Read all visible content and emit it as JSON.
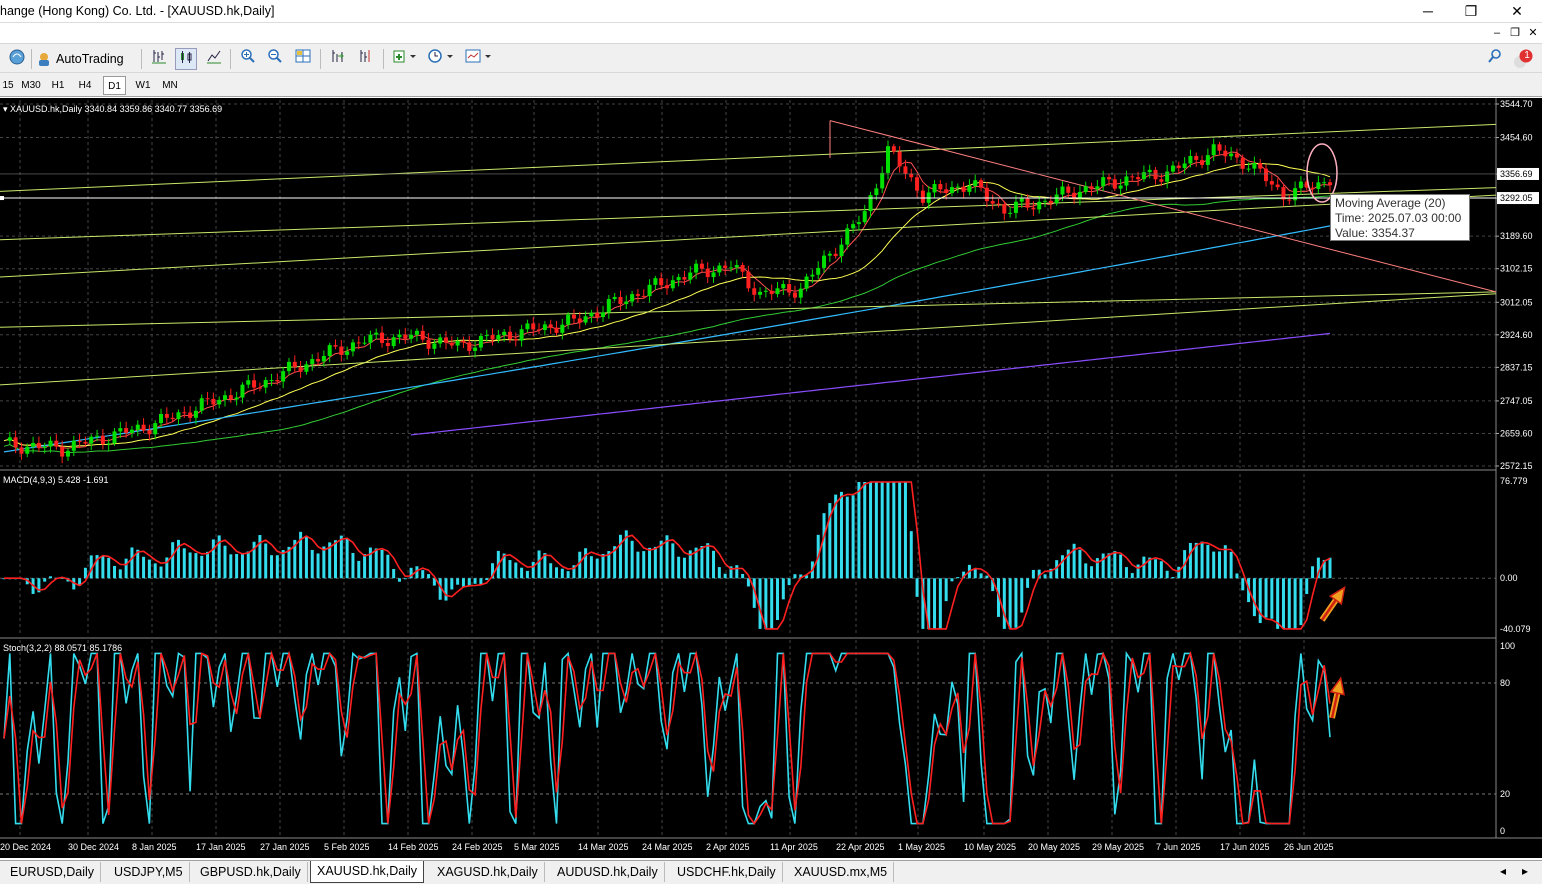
{
  "window": {
    "title": "hange (Hong Kong) Co. Ltd. - [XAUUSD.hk,Daily]",
    "minimize": "─",
    "maximize": "❐",
    "close": "✕",
    "mdi_min": "–",
    "mdi_restore": "❐",
    "mdi_close": "✕",
    "notification_count": "1"
  },
  "toolbar": {
    "autotrading_label": "AutoTrading"
  },
  "timeframes": [
    {
      "label": "15",
      "active": false
    },
    {
      "label": "M30",
      "active": false
    },
    {
      "label": "H1",
      "active": false
    },
    {
      "label": "H4",
      "active": false
    },
    {
      "label": "D1",
      "active": true
    },
    {
      "label": "W1",
      "active": false
    },
    {
      "label": "MN",
      "active": false
    }
  ],
  "chart": {
    "header": "▾ XAUUSD.hk,Daily  3340.84 3359.86 3340.77 3356.69",
    "price_ticks": [
      "3544.70",
      "3454.60",
      "3356.69",
      "3292.05",
      "3189.60",
      "3102.15",
      "3012.05",
      "2924.60",
      "2837.15",
      "2747.05",
      "2659.60",
      "2572.15"
    ],
    "current_price_label": "3356.69",
    "line_price_label": "3292.05",
    "date_ticks": [
      "20 Dec 2024",
      "30 Dec 2024",
      "8 Jan 2025",
      "17 Jan 2025",
      "27 Jan 2025",
      "5 Feb 2025",
      "14 Feb 2025",
      "24 Feb 2025",
      "5 Mar 2025",
      "14 Mar 2025",
      "24 Mar 2025",
      "2 Apr 2025",
      "11 Apr 2025",
      "22 Apr 2025",
      "1 May 2025",
      "10 May 2025",
      "20 May 2025",
      "29 May 2025",
      "7 Jun 2025",
      "17 Jun 2025",
      "26 Jun 2025"
    ],
    "colors": {
      "bull": "#00e000",
      "bear": "#ff2020",
      "ma_fast": "#ff5050",
      "ma_20": "#ffff55",
      "ma_50": "#33cc33",
      "ma_100": "#33bbff",
      "ma_200": "#8a4dff",
      "macd_hist": "#33ddee",
      "signal": "#ff2020",
      "stoch_main": "#33ddee",
      "channel": "#c8e86a"
    }
  },
  "tooltip": {
    "line1": "Moving Average (20)",
    "line2": "Time: 2025.07.03 00:00",
    "line3": "Value: 3354.37"
  },
  "macd": {
    "label": "MACD(4,9,3) 5.428 -1.691",
    "ticks": [
      "76.779",
      "0.00",
      "-40.079"
    ]
  },
  "stoch": {
    "label": "Stoch(3,2,2) 88.0571 85.1786",
    "ticks": [
      "100",
      "80",
      "20",
      "0"
    ]
  },
  "tabs": [
    {
      "label": "EURUSD,Daily",
      "active": false
    },
    {
      "label": "USDJPY,M5",
      "active": false
    },
    {
      "label": "GBPUSD.hk,Daily",
      "active": false
    },
    {
      "label": "XAUUSD.hk,Daily",
      "active": true
    },
    {
      "label": "XAGUSD.hk,Daily",
      "active": false
    },
    {
      "label": "AUDUSD.hk,Daily",
      "active": false
    },
    {
      "label": "USDCHF.hk,Daily",
      "active": false
    },
    {
      "label": "XAUUSD.mx,M5",
      "active": false
    }
  ],
  "tab_scroll": {
    "left": "◂",
    "right": "▸"
  }
}
